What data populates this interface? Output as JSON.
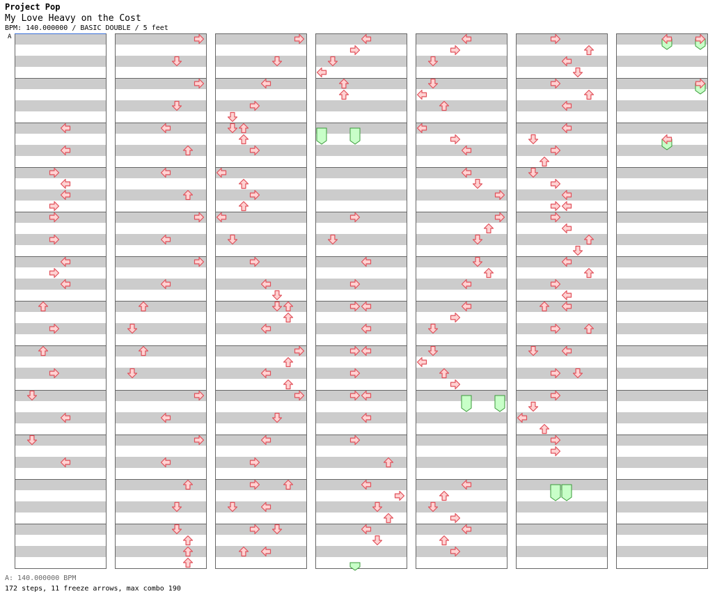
{
  "header": {
    "genre": "Project Pop",
    "title": "My Love Heavy on the Cost",
    "meta": "BPM: 140.000000 / BASIC DOUBLE / 5 feet"
  },
  "bpm_marker": "A",
  "footer": {
    "bpm_legend": "A: 140.000000 BPM",
    "summary": "172 steps, 11 freeze arrows, max combo 190"
  },
  "colors": {
    "arrow_fill": "#ffd2d2",
    "arrow_stroke": "#e0505a",
    "freeze_fill": "#c8ffc8",
    "freeze_stroke": "#3a9a3a",
    "stripe": "#cccccc",
    "measure_line": "#666666",
    "bpm_marker_line": "#3a6fd8"
  },
  "chart": {
    "lanes": [
      "L1",
      "D1",
      "U1",
      "R1",
      "L2",
      "D2",
      "U2",
      "R2"
    ],
    "columns": [
      {
        "measures": [
          [],
          [],
          [
            [
              0,
              "L2"
            ],
            [
              8,
              "L2"
            ]
          ],
          [
            [
              0,
              "R1"
            ],
            [
              4,
              "L2"
            ],
            [
              8,
              "L2"
            ],
            [
              12,
              "R1"
            ]
          ],
          [
            [
              0,
              "R1"
            ],
            [
              8,
              "R1"
            ]
          ],
          [
            [
              0,
              "L2"
            ],
            [
              4,
              "R1"
            ],
            [
              8,
              "L2"
            ]
          ],
          [
            [
              0,
              "U1"
            ],
            [
              8,
              "R1"
            ]
          ],
          [
            [
              0,
              "U1"
            ],
            [
              8,
              "R1"
            ]
          ],
          [
            [
              0,
              "D1"
            ],
            [
              8,
              "L2"
            ]
          ],
          [
            [
              0,
              "D1"
            ],
            [
              8,
              "L2"
            ]
          ]
        ]
      },
      {
        "measures": [
          [
            [
              0,
              "R2"
            ],
            [
              8,
              "D2"
            ]
          ],
          [
            [
              0,
              "R2"
            ],
            [
              8,
              "D2"
            ]
          ],
          [
            [
              0,
              "L2"
            ],
            [
              8,
              "U2"
            ]
          ],
          [
            [
              0,
              "L2"
            ],
            [
              8,
              "U2"
            ]
          ],
          [
            [
              0,
              "R2"
            ],
            [
              8,
              "L2"
            ]
          ],
          [
            [
              0,
              "R2"
            ],
            [
              8,
              "L2"
            ]
          ],
          [
            [
              0,
              "U1"
            ],
            [
              8,
              "D1"
            ]
          ],
          [
            [
              0,
              "U1"
            ],
            [
              8,
              "D1"
            ]
          ],
          [
            [
              0,
              "R2"
            ],
            [
              8,
              "L2"
            ]
          ],
          [
            [
              0,
              "R2"
            ],
            [
              8,
              "L2"
            ]
          ],
          [
            [
              0,
              "U2"
            ],
            [
              8,
              "D2"
            ]
          ],
          [
            [
              0,
              "D2"
            ],
            [
              4,
              "U2"
            ],
            [
              8,
              "U2"
            ],
            [
              12,
              "U2"
            ]
          ]
        ]
      },
      {
        "measures": [
          [
            [
              0,
              "R2"
            ],
            [
              8,
              "D2"
            ]
          ],
          [
            [
              0,
              "L2"
            ],
            [
              8,
              "R1"
            ],
            [
              12,
              "D1"
            ]
          ],
          [
            [
              0,
              "D1"
            ],
            [
              0,
              "U1"
            ],
            [
              4,
              "U1"
            ],
            [
              8,
              "R1"
            ]
          ],
          [
            [
              0,
              "L1"
            ],
            [
              4,
              "U1"
            ],
            [
              8,
              "R1"
            ],
            [
              12,
              "U1"
            ]
          ],
          [
            [
              0,
              "L1"
            ],
            [
              8,
              "D1"
            ]
          ],
          [
            [
              0,
              "R1"
            ],
            [
              8,
              "L2"
            ],
            [
              12,
              "D2"
            ]
          ],
          [
            [
              0,
              "D2"
            ],
            [
              0,
              "U2"
            ],
            [
              4,
              "U2"
            ],
            [
              8,
              "L2"
            ]
          ],
          [
            [
              0,
              "R2"
            ],
            [
              4,
              "U2"
            ],
            [
              8,
              "L2"
            ],
            [
              12,
              "U2"
            ]
          ],
          [
            [
              0,
              "R2"
            ],
            [
              8,
              "D2"
            ]
          ],
          [
            [
              0,
              "L2"
            ],
            [
              8,
              "R1"
            ]
          ],
          [
            [
              0,
              "R1"
            ],
            [
              0,
              "U2"
            ],
            [
              8,
              "D1"
            ],
            [
              8,
              "L2"
            ]
          ],
          [
            [
              0,
              "R1"
            ],
            [
              0,
              "D2"
            ],
            [
              8,
              "U1"
            ],
            [
              8,
              "L2"
            ]
          ]
        ]
      },
      {
        "measures": [
          [
            [
              0,
              "L2"
            ],
            [
              4,
              "R1"
            ],
            [
              8,
              "D1"
            ],
            [
              12,
              "L1"
            ]
          ],
          [
            [
              0,
              "U1"
            ],
            [
              4,
              "U1"
            ]
          ],
          [],
          [],
          [
            [
              0,
              "R1"
            ],
            [
              8,
              "D1"
            ]
          ],
          [
            [
              0,
              "L2"
            ],
            [
              8,
              "R1"
            ]
          ],
          [
            [
              0,
              "R1"
            ],
            [
              0,
              "L2"
            ],
            [
              8,
              "L2"
            ]
          ],
          [
            [
              0,
              "R1"
            ],
            [
              0,
              "L2"
            ],
            [
              8,
              "R1"
            ]
          ],
          [
            [
              0,
              "R1"
            ],
            [
              0,
              "L2"
            ],
            [
              8,
              "L2"
            ]
          ],
          [
            [
              0,
              "R1"
            ],
            [
              8,
              "U2"
            ]
          ],
          [
            [
              0,
              "L2"
            ],
            [
              4,
              "R2"
            ],
            [
              8,
              "D2"
            ],
            [
              12,
              "U2"
            ]
          ],
          [
            [
              0,
              "L2"
            ],
            [
              4,
              "D2"
            ]
          ]
        ]
      },
      {
        "measures": [
          [
            [
              0,
              "L2"
            ],
            [
              4,
              "R1"
            ],
            [
              8,
              "D1"
            ]
          ],
          [
            [
              0,
              "D1"
            ],
            [
              4,
              "L1"
            ],
            [
              8,
              "U1"
            ]
          ],
          [
            [
              0,
              "L1"
            ],
            [
              4,
              "R1"
            ],
            [
              8,
              "L2"
            ]
          ],
          [
            [
              0,
              "L2"
            ],
            [
              4,
              "D2"
            ],
            [
              8,
              "R2"
            ]
          ],
          [
            [
              0,
              "R2"
            ],
            [
              4,
              "U2"
            ],
            [
              8,
              "D2"
            ]
          ],
          [
            [
              0,
              "D2"
            ],
            [
              4,
              "U2"
            ],
            [
              8,
              "L2"
            ]
          ],
          [
            [
              0,
              "L2"
            ],
            [
              4,
              "R1"
            ],
            [
              8,
              "D1"
            ]
          ],
          [
            [
              0,
              "D1"
            ],
            [
              4,
              "L1"
            ],
            [
              8,
              "U1"
            ],
            [
              12,
              "R1"
            ]
          ],
          [],
          [],
          [
            [
              0,
              "L2"
            ],
            [
              4,
              "U1"
            ],
            [
              8,
              "D1"
            ],
            [
              12,
              "R1"
            ]
          ],
          [
            [
              0,
              "L2"
            ],
            [
              4,
              "U1"
            ],
            [
              8,
              "R1"
            ]
          ]
        ]
      },
      {
        "measures": [
          [
            [
              0,
              "R1"
            ],
            [
              4,
              "U2"
            ],
            [
              8,
              "L2"
            ],
            [
              12,
              "D2"
            ]
          ],
          [
            [
              0,
              "R1"
            ],
            [
              4,
              "U2"
            ],
            [
              8,
              "L2"
            ]
          ],
          [
            [
              0,
              "L2"
            ],
            [
              4,
              "D1"
            ],
            [
              8,
              "R1"
            ],
            [
              12,
              "U1"
            ]
          ],
          [
            [
              0,
              "D1"
            ],
            [
              4,
              "R1"
            ],
            [
              8,
              "L2"
            ],
            [
              12,
              "R1"
            ],
            [
              12,
              "L2"
            ]
          ],
          [
            [
              0,
              "R1"
            ],
            [
              4,
              "L2"
            ],
            [
              8,
              "U2"
            ],
            [
              12,
              "D2"
            ]
          ],
          [
            [
              0,
              "L2"
            ],
            [
              4,
              "U2"
            ],
            [
              8,
              "R1"
            ],
            [
              12,
              "L2"
            ]
          ],
          [
            [
              0,
              "U1"
            ],
            [
              0,
              "L2"
            ],
            [
              8,
              "R1"
            ],
            [
              8,
              "U2"
            ]
          ],
          [
            [
              0,
              "D1"
            ],
            [
              0,
              "L2"
            ],
            [
              8,
              "R1"
            ],
            [
              8,
              "D2"
            ]
          ],
          [
            [
              0,
              "R1"
            ],
            [
              4,
              "D1"
            ],
            [
              8,
              "L1"
            ],
            [
              12,
              "U1"
            ]
          ],
          [
            [
              0,
              "R1"
            ],
            [
              4,
              "R1"
            ]
          ],
          [],
          []
        ]
      },
      {
        "measures": [
          [
            [
              0,
              "R2"
            ],
            [
              0,
              "L2"
            ]
          ],
          [
            [
              0,
              "R2"
            ]
          ],
          [
            [
              4,
              "L2"
            ]
          ],
          [],
          [],
          [],
          [],
          [],
          [],
          [],
          [],
          []
        ]
      }
    ],
    "freezes": [
      {
        "col": 3,
        "measure": 2,
        "lane": "L1",
        "start": 0,
        "end": 4.5
      },
      {
        "col": 3,
        "measure": 2,
        "lane": "R1",
        "start": 0,
        "end": 4.5
      },
      {
        "col": 3,
        "measure": 11,
        "lane": "R1",
        "start": 12,
        "end": 13.5
      },
      {
        "col": 4,
        "measure": 8,
        "lane": "R2",
        "start": 0,
        "end": 4.5
      },
      {
        "col": 4,
        "measure": 8,
        "lane": "L2",
        "start": 0,
        "end": 4.5
      },
      {
        "col": 5,
        "measure": 10,
        "lane": "R1",
        "start": 0,
        "end": 4.5
      },
      {
        "col": 5,
        "measure": 10,
        "lane": "L2",
        "start": 0,
        "end": 4.5
      },
      {
        "col": 6,
        "measure": 0,
        "lane": "R2",
        "start": 0,
        "end": 2.5
      },
      {
        "col": 6,
        "measure": 0,
        "lane": "L2",
        "start": 0,
        "end": 2.5
      },
      {
        "col": 6,
        "measure": 1,
        "lane": "R2",
        "start": 0,
        "end": 2.5
      },
      {
        "col": 6,
        "measure": 2,
        "lane": "L2",
        "start": 4,
        "end": 6.5
      }
    ]
  }
}
